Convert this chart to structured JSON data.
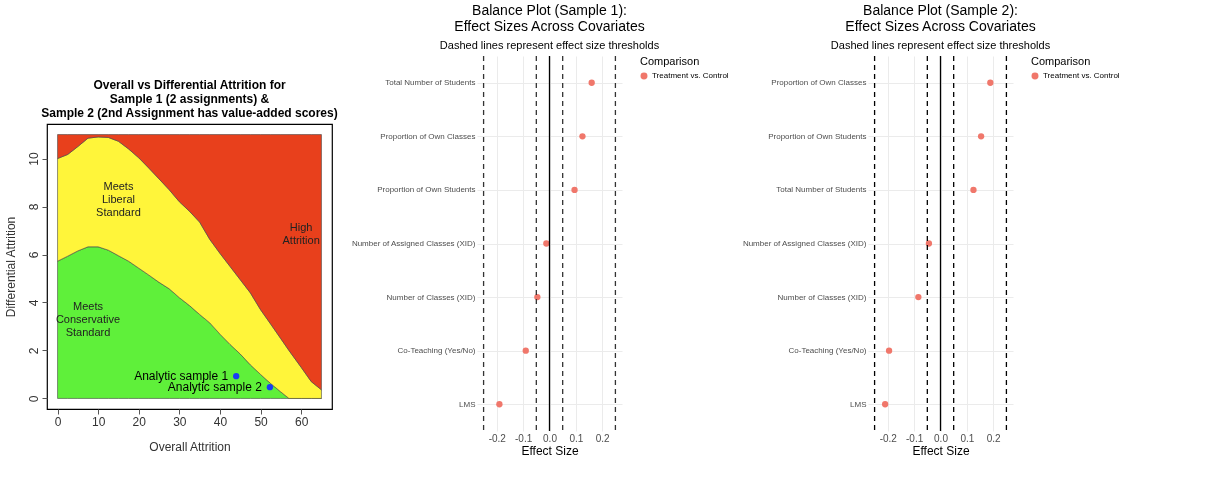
{
  "chart_data": [
    {
      "type": "area",
      "title": "Overall vs Differential Attrition for\nSample 1 (2 assignments) &\nSample 2 (2nd Assignment has value-added scores)",
      "xlabel": "Overall Attrition",
      "ylabel": "Differential Attrition",
      "stacked": true,
      "grid": false,
      "legend": false,
      "x": [
        0,
        2.5,
        5,
        7.5,
        10,
        12.5,
        15,
        17.5,
        20,
        22.5,
        25,
        27.5,
        30,
        32.5,
        35,
        37.5,
        40,
        42.5,
        45,
        47.5,
        50,
        52.5,
        55,
        57,
        60,
        62.5,
        65
      ],
      "xlim": [
        -2.6,
        67.6
      ],
      "ylim": [
        -0.44,
        11.44
      ],
      "xticks": [
        0,
        10,
        20,
        30,
        40,
        50,
        60
      ],
      "yticks": [
        0,
        2,
        4,
        6,
        8,
        10
      ],
      "series": [
        {
          "name": "Meets Conservative Standard",
          "color": "#5ff03a",
          "values": [
            5.72,
            5.93,
            6.15,
            6.32,
            6.32,
            6.18,
            5.95,
            5.72,
            5.43,
            5.14,
            4.84,
            4.57,
            4.2,
            3.87,
            3.5,
            3.15,
            2.68,
            2.25,
            1.85,
            1.4,
            1.0,
            0.62,
            0.27,
            0,
            0,
            0,
            0
          ]
        },
        {
          "name": "Meets Liberal Standard",
          "color": "#fff53a",
          "values": [
            4.28,
            4.24,
            4.35,
            4.53,
            4.58,
            4.7,
            4.77,
            4.68,
            4.6,
            4.46,
            4.31,
            4.13,
            4.0,
            3.93,
            3.85,
            3.48,
            3.37,
            3.25,
            3.1,
            3.0,
            2.7,
            2.48,
            2.22,
            2.0,
            1.3,
            0.7,
            0.36
          ]
        },
        {
          "name": "High Attrition",
          "color": "#e8401c",
          "values": [
            1.0,
            0.83,
            0.5,
            0.15,
            0.1,
            0.12,
            0.28,
            0.6,
            0.97,
            1.4,
            1.85,
            2.3,
            2.8,
            3.2,
            3.65,
            4.37,
            4.95,
            5.5,
            6.05,
            6.6,
            7.3,
            7.9,
            8.51,
            9.0,
            9.7,
            10.3,
            10.64
          ]
        },
        {
          "name": "Analytic sample 1",
          "type": "scatter",
          "marker": "circle",
          "color": "#1a3cf5",
          "x": [
            44
          ],
          "values": [
            0.93
          ]
        },
        {
          "name": "Analytic sample 2",
          "type": "scatter",
          "marker": "circle",
          "color": "#1a3cf5",
          "x": [
            52.3
          ],
          "values": [
            0.47
          ]
        }
      ]
    },
    {
      "type": "scatter",
      "orientation": "horizontal",
      "title": "Balance Plot (Sample 1):\nEffect Sizes Across Covariates",
      "subtitle": "Dashed lines represent effect size thresholds",
      "xlabel": "Effect Size",
      "legend_title": "Comparison",
      "legend": "right",
      "grid": true,
      "marker": "circle",
      "categories": [
        "Total Number of Students",
        "Proportion of Own Classes",
        "Proportion of Own Students",
        "Number of Assigned Classes (XID)",
        "Number of Classes (XID)",
        "Co-Teaching (Yes/No)",
        "LMS"
      ],
      "xlim": [
        -0.275,
        0.275
      ],
      "xticks": [
        -0.2,
        -0.1,
        {
          "value": 0,
          "label": "0.0"
        },
        0.1,
        0.2
      ],
      "series": [
        {
          "name": "Treatment vs. Control",
          "color": "#f0776b",
          "values": [
            0.16,
            0.125,
            0.095,
            -0.012,
            -0.046,
            -0.09,
            -0.19
          ]
        }
      ],
      "ref_lines": [
        {
          "axis": "x",
          "value": -0.25,
          "line_style": "dashed",
          "color": "#333333"
        },
        {
          "axis": "x",
          "value": -0.05,
          "line_style": "dashed",
          "color": "#333333"
        },
        {
          "axis": "x",
          "value": 0,
          "line_style": "solid",
          "color": "#000000"
        },
        {
          "axis": "x",
          "value": 0.05,
          "line_style": "dashed",
          "color": "#333333"
        },
        {
          "axis": "x",
          "value": 0.25,
          "line_style": "dashed",
          "color": "#333333"
        }
      ]
    },
    {
      "type": "scatter",
      "orientation": "horizontal",
      "title": "Balance Plot (Sample 2):\nEffect Sizes Across Covariates",
      "subtitle": "Dashed lines represent effect size thresholds",
      "xlabel": "Effect Size",
      "legend_title": "Comparison",
      "legend": "right",
      "grid": true,
      "marker": "circle",
      "categories": [
        "Proportion of Own Classes",
        "Proportion of Own Students",
        "Total Number of Students",
        "Number of Assigned Classes (XID)",
        "Number of Classes (XID)",
        "Co-Teaching (Yes/No)",
        "LMS"
      ],
      "xlim": [
        -0.275,
        0.275
      ],
      "xticks": [
        -0.2,
        -0.1,
        {
          "value": 0,
          "label": "0.0"
        },
        0.1,
        0.2
      ],
      "series": [
        {
          "name": "Treatment vs. Control",
          "color": "#f0776b",
          "values": [
            0.189,
            0.154,
            0.125,
            -0.044,
            -0.084,
            -0.195,
            -0.21
          ]
        }
      ],
      "ref_lines": [
        {
          "axis": "x",
          "value": -0.25,
          "line_style": "dashed",
          "color": "#000000"
        },
        {
          "axis": "x",
          "value": -0.05,
          "line_style": "dashed",
          "color": "#000000"
        },
        {
          "axis": "x",
          "value": 0,
          "line_style": "solid",
          "color": "#000000"
        },
        {
          "axis": "x",
          "value": 0.05,
          "line_style": "dashed",
          "color": "#000000"
        },
        {
          "axis": "x",
          "value": 0.25,
          "line_style": "dashed",
          "color": "#000000"
        }
      ]
    }
  ]
}
